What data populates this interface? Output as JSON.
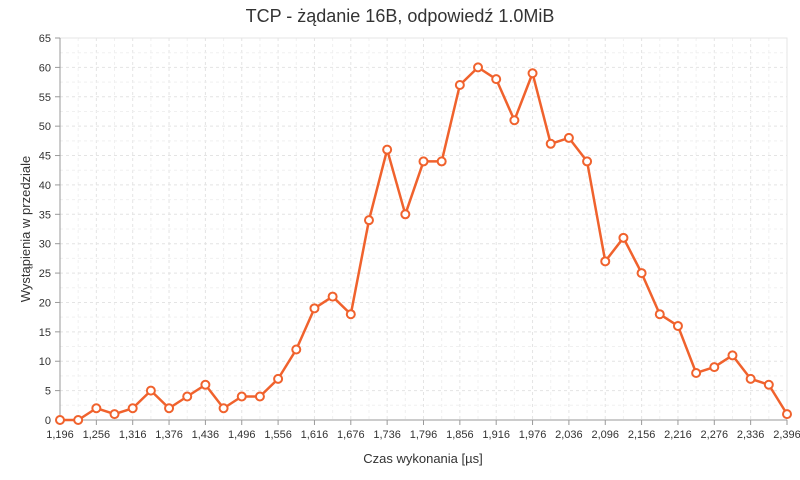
{
  "chart_data": {
    "type": "line",
    "title": "TCP - żądanie 16B, odpowiedź 1.0MiB",
    "xlabel": "Czas wykonania [µs]",
    "ylabel": "Wystąpienia w przedziale",
    "xlim": [
      1196,
      2396
    ],
    "ylim": [
      0,
      65
    ],
    "x_ticks": [
      "1,196",
      "1,256",
      "1,316",
      "1,376",
      "1,436",
      "1,496",
      "1,556",
      "1,616",
      "1,676",
      "1,736",
      "1,796",
      "1,856",
      "1,916",
      "1,976",
      "2,036",
      "2,096",
      "2,156",
      "2,216",
      "2,276",
      "2,336",
      "2,396"
    ],
    "y_ticks": [
      0,
      5,
      10,
      15,
      20,
      25,
      30,
      35,
      40,
      45,
      50,
      55,
      60,
      65
    ],
    "grid": true,
    "legend": "none",
    "series_color": "#f0622d",
    "series": [
      {
        "x": [
          1196,
          1226,
          1256,
          1286,
          1316,
          1346,
          1376,
          1406,
          1436,
          1466,
          1496,
          1526,
          1556,
          1586,
          1616,
          1646,
          1676,
          1706,
          1736,
          1766,
          1796,
          1826,
          1856,
          1886,
          1916,
          1946,
          1976,
          2006,
          2036,
          2066,
          2096,
          2126,
          2156,
          2186,
          2216,
          2246,
          2276,
          2306,
          2336,
          2366,
          2396
        ],
        "values": [
          0,
          0,
          2,
          1,
          2,
          5,
          2,
          4,
          6,
          2,
          4,
          4,
          7,
          12,
          19,
          21,
          18,
          34,
          46,
          35,
          44,
          44,
          57,
          60,
          58,
          51,
          59,
          47,
          48,
          44,
          27,
          31,
          25,
          18,
          16,
          8,
          9,
          11,
          7,
          6,
          1
        ]
      }
    ]
  }
}
